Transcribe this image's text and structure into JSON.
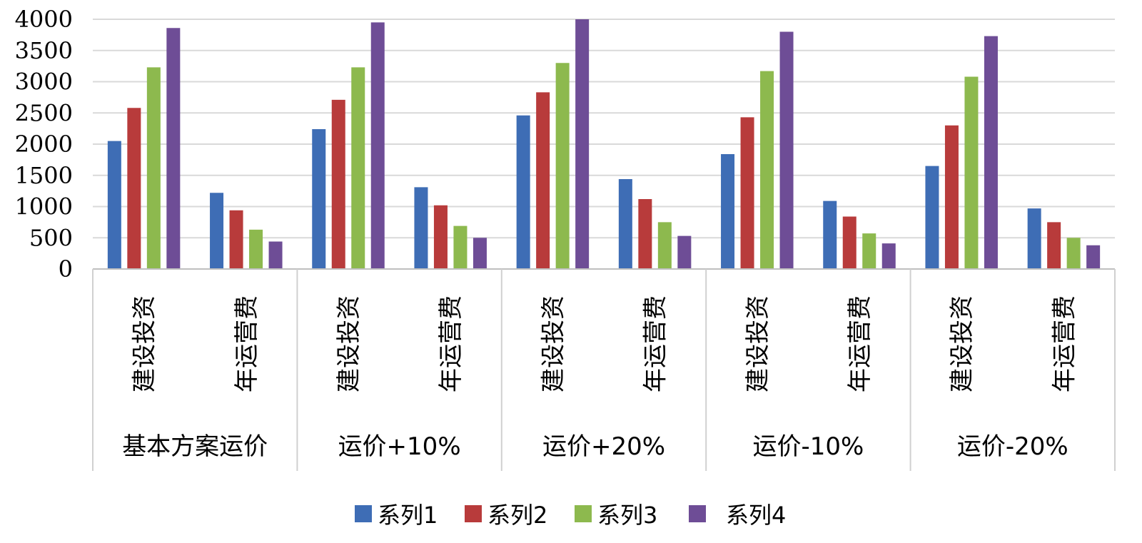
{
  "chart_data": {
    "type": "bar",
    "title": "",
    "xlabel": "",
    "ylabel": "",
    "ylim": [
      0,
      4000
    ],
    "yticks": [
      0,
      500,
      1000,
      1500,
      2000,
      2500,
      3000,
      3500,
      4000
    ],
    "grid": true,
    "legend_position": "bottom",
    "groups": [
      "基本方案运价",
      "运价+10%",
      "运价+20%",
      "运价-10%",
      "运价-20%"
    ],
    "subcategories": [
      "建设投资",
      "年运营费"
    ],
    "categories": [
      "基本方案运价 建设投资",
      "基本方案运价 年运营费",
      "运价+10% 建设投资",
      "运价+10% 年运营费",
      "运价+20% 建设投资",
      "运价+20% 年运营费",
      "运价-10% 建设投资",
      "运价-10% 年运营费",
      "运价-20% 建设投资",
      "运价-20% 年运营费"
    ],
    "series": [
      {
        "name": "系列1",
        "color": "#3E6DB5",
        "values": [
          2050,
          1220,
          2240,
          1310,
          2460,
          1440,
          1840,
          1090,
          1650,
          970
        ]
      },
      {
        "name": "系列2",
        "color": "#B83B3B",
        "values": [
          2580,
          940,
          2710,
          1020,
          2830,
          1120,
          2430,
          840,
          2300,
          750
        ]
      },
      {
        "name": "系列3",
        "color": "#8DB94E",
        "values": [
          3230,
          630,
          3230,
          690,
          3300,
          750,
          3170,
          570,
          3080,
          500
        ]
      },
      {
        "name": "系列4",
        "color": "#6E4D96",
        "values": [
          3860,
          440,
          3950,
          500,
          4000,
          530,
          3800,
          410,
          3730,
          380
        ]
      }
    ]
  }
}
